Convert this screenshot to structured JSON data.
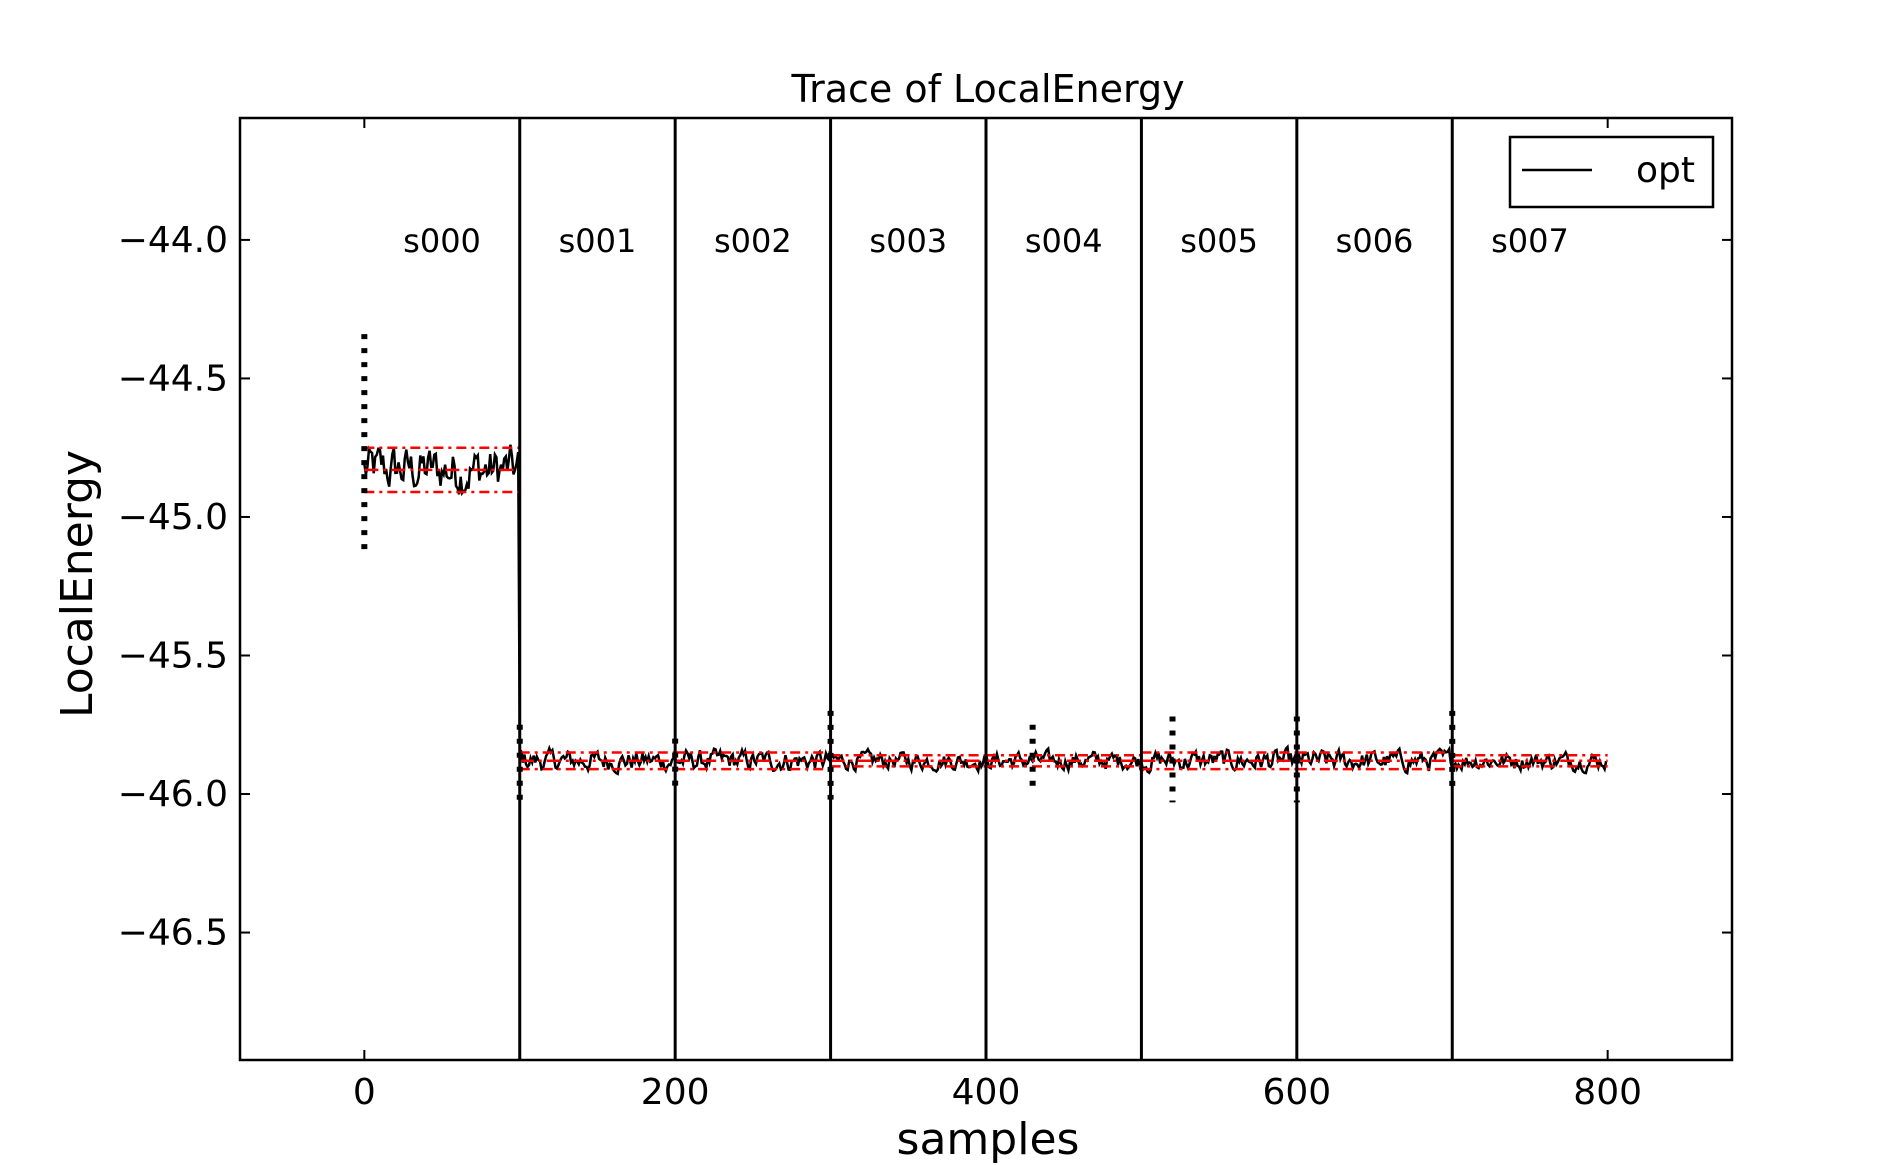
{
  "chart_data": {
    "type": "line",
    "title": "Trace of LocalEnergy",
    "xlabel": "samples",
    "ylabel": "LocalEnergy",
    "xlim": [
      -80,
      880
    ],
    "ylim": [
      -46.96,
      -43.56
    ],
    "xticks": [
      0,
      200,
      400,
      600,
      800
    ],
    "xtick_labels": [
      "0",
      "200",
      "400",
      "600",
      "800"
    ],
    "yticks": [
      -44.0,
      -44.5,
      -45.0,
      -45.5,
      -46.0,
      -46.5
    ],
    "ytick_labels": [
      "−44.0",
      "−44.5",
      "−45.0",
      "−45.5",
      "−46.0",
      "−46.5"
    ],
    "grid": false,
    "legend": {
      "position": "top-right",
      "entries": [
        "opt"
      ]
    },
    "segment_boundaries": [
      100,
      200,
      300,
      400,
      500,
      600,
      700
    ],
    "segments": [
      {
        "label": "s000",
        "start": 0,
        "end": 100,
        "mean": -44.83,
        "error": 0.08,
        "std_band": [
          -44.91,
          -44.75
        ]
      },
      {
        "label": "s001",
        "start": 100,
        "end": 200,
        "mean": -45.88,
        "error": 0.03,
        "std_band": [
          -45.91,
          -45.85
        ]
      },
      {
        "label": "s002",
        "start": 200,
        "end": 300,
        "mean": -45.88,
        "error": 0.03,
        "std_band": [
          -45.91,
          -45.85
        ]
      },
      {
        "label": "s003",
        "start": 300,
        "end": 400,
        "mean": -45.88,
        "error": 0.02,
        "std_band": [
          -45.9,
          -45.86
        ]
      },
      {
        "label": "s004",
        "start": 400,
        "end": 500,
        "mean": -45.88,
        "error": 0.02,
        "std_band": [
          -45.9,
          -45.86
        ]
      },
      {
        "label": "s005",
        "start": 500,
        "end": 600,
        "mean": -45.88,
        "error": 0.02,
        "std_band": [
          -45.91,
          -45.85
        ]
      },
      {
        "label": "s006",
        "start": 600,
        "end": 700,
        "mean": -45.88,
        "error": 0.03,
        "std_band": [
          -45.91,
          -45.85
        ]
      },
      {
        "label": "s007",
        "start": 700,
        "end": 800,
        "mean": -45.88,
        "error": 0.02,
        "std_band": [
          -45.9,
          -45.86
        ]
      }
    ],
    "series": [
      {
        "name": "opt",
        "color": "#000000",
        "noise_amplitude": [
          0.07,
          0.03,
          0.03,
          0.025,
          0.025,
          0.03,
          0.03,
          0.025
        ]
      }
    ],
    "errorbars": [
      {
        "x": 0,
        "low": -45.14,
        "high": -44.34
      },
      {
        "x": 100,
        "low": -46.05,
        "high": -45.75
      },
      {
        "x": 200,
        "low": -45.98,
        "high": -45.8
      },
      {
        "x": 300,
        "low": -46.02,
        "high": -45.7
      },
      {
        "x": 430,
        "low": -45.98,
        "high": -45.75
      },
      {
        "x": 520,
        "low": -46.03,
        "high": -45.72
      },
      {
        "x": 600,
        "low": -46.03,
        "high": -45.72
      },
      {
        "x": 700,
        "low": -46.0,
        "high": -45.7
      }
    ],
    "colors": {
      "trace": "#000000",
      "mean_band": "#ff0000",
      "boundary": "#000000"
    }
  }
}
